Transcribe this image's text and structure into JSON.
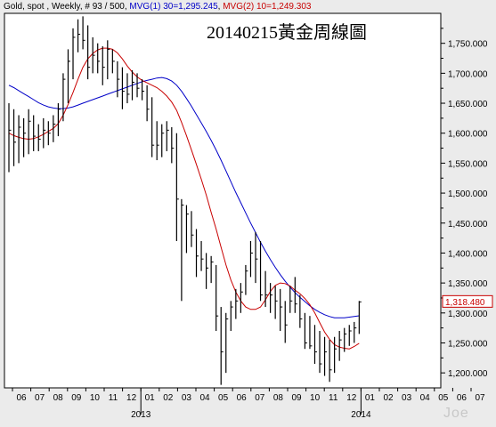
{
  "header": {
    "symbol": "Gold, spot",
    "period": "Weekly",
    "bars": "# 93 / 500",
    "mvg1": "MVG(1) 30=1,295.245",
    "mvg2": "MVG(2) 10=1,249.303"
  },
  "watermark": "Joe",
  "chart_data": {
    "type": "candlestick",
    "title": "20140215黃金周線圖",
    "ylim": [
      1175,
      1800
    ],
    "y_ticks": [
      1200,
      1250,
      1300,
      1350,
      1400,
      1450,
      1500,
      1550,
      1600,
      1650,
      1700,
      1750
    ],
    "y_tick_labels": [
      "1,200.000",
      "1,250.000",
      "1,300.000",
      "1,350.000",
      "1,400.000",
      "1,450.000",
      "1,500.000",
      "1,550.000",
      "1,600.000",
      "1,650.000",
      "1,700.000",
      "1,750.000"
    ],
    "last_price": 1318.48,
    "last_price_label": "1,318.480",
    "x_month_labels": [
      "06",
      "07",
      "08",
      "09",
      "10",
      "11",
      "12",
      "01",
      "02",
      "03",
      "04",
      "05",
      "06",
      "07",
      "08",
      "09",
      "10",
      "11",
      "12",
      "01",
      "02",
      "03",
      "04",
      "05",
      "06",
      "07"
    ],
    "x_year_labels": [
      {
        "label": "2013",
        "month_index": 7
      },
      {
        "label": "2014",
        "month_index": 19
      }
    ],
    "weekly_bars": [
      {
        "h": 1650,
        "l": 1535,
        "c": 1605
      },
      {
        "h": 1640,
        "l": 1545,
        "c": 1585
      },
      {
        "h": 1630,
        "l": 1550,
        "c": 1610
      },
      {
        "h": 1625,
        "l": 1560,
        "c": 1600
      },
      {
        "h": 1640,
        "l": 1565,
        "c": 1620
      },
      {
        "h": 1630,
        "l": 1570,
        "c": 1595
      },
      {
        "h": 1615,
        "l": 1570,
        "c": 1590
      },
      {
        "h": 1625,
        "l": 1575,
        "c": 1605
      },
      {
        "h": 1620,
        "l": 1580,
        "c": 1600
      },
      {
        "h": 1630,
        "l": 1585,
        "c": 1615
      },
      {
        "h": 1650,
        "l": 1595,
        "c": 1640
      },
      {
        "h": 1700,
        "l": 1620,
        "c": 1690
      },
      {
        "h": 1740,
        "l": 1650,
        "c": 1720
      },
      {
        "h": 1775,
        "l": 1690,
        "c": 1760
      },
      {
        "h": 1790,
        "l": 1735,
        "c": 1765
      },
      {
        "h": 1795,
        "l": 1740,
        "c": 1755
      },
      {
        "h": 1780,
        "l": 1690,
        "c": 1710
      },
      {
        "h": 1760,
        "l": 1700,
        "c": 1730
      },
      {
        "h": 1750,
        "l": 1700,
        "c": 1720
      },
      {
        "h": 1745,
        "l": 1680,
        "c": 1710
      },
      {
        "h": 1755,
        "l": 1690,
        "c": 1740
      },
      {
        "h": 1740,
        "l": 1700,
        "c": 1720
      },
      {
        "h": 1720,
        "l": 1660,
        "c": 1690
      },
      {
        "h": 1710,
        "l": 1640,
        "c": 1670
      },
      {
        "h": 1700,
        "l": 1650,
        "c": 1665
      },
      {
        "h": 1705,
        "l": 1655,
        "c": 1685
      },
      {
        "h": 1700,
        "l": 1660,
        "c": 1675
      },
      {
        "h": 1690,
        "l": 1655,
        "c": 1670
      },
      {
        "h": 1680,
        "l": 1620,
        "c": 1640
      },
      {
        "h": 1660,
        "l": 1560,
        "c": 1580
      },
      {
        "h": 1620,
        "l": 1555,
        "c": 1580
      },
      {
        "h": 1615,
        "l": 1560,
        "c": 1600
      },
      {
        "h": 1620,
        "l": 1570,
        "c": 1605
      },
      {
        "h": 1610,
        "l": 1550,
        "c": 1575
      },
      {
        "h": 1600,
        "l": 1420,
        "c": 1490
      },
      {
        "h": 1490,
        "l": 1320,
        "c": 1480
      },
      {
        "h": 1480,
        "l": 1400,
        "c": 1465
      },
      {
        "h": 1470,
        "l": 1410,
        "c": 1430
      },
      {
        "h": 1440,
        "l": 1360,
        "c": 1395
      },
      {
        "h": 1420,
        "l": 1370,
        "c": 1390
      },
      {
        "h": 1400,
        "l": 1340,
        "c": 1375
      },
      {
        "h": 1395,
        "l": 1350,
        "c": 1385
      },
      {
        "h": 1380,
        "l": 1270,
        "c": 1295
      },
      {
        "h": 1310,
        "l": 1180,
        "c": 1235
      },
      {
        "h": 1300,
        "l": 1200,
        "c": 1290
      },
      {
        "h": 1320,
        "l": 1270,
        "c": 1310
      },
      {
        "h": 1340,
        "l": 1290,
        "c": 1320
      },
      {
        "h": 1350,
        "l": 1300,
        "c": 1335
      },
      {
        "h": 1380,
        "l": 1330,
        "c": 1370
      },
      {
        "h": 1420,
        "l": 1360,
        "c": 1400
      },
      {
        "h": 1435,
        "l": 1350,
        "c": 1390
      },
      {
        "h": 1420,
        "l": 1320,
        "c": 1330
      },
      {
        "h": 1370,
        "l": 1310,
        "c": 1330
      },
      {
        "h": 1350,
        "l": 1300,
        "c": 1330
      },
      {
        "h": 1345,
        "l": 1290,
        "c": 1320
      },
      {
        "h": 1340,
        "l": 1270,
        "c": 1310
      },
      {
        "h": 1320,
        "l": 1250,
        "c": 1280
      },
      {
        "h": 1345,
        "l": 1300,
        "c": 1320
      },
      {
        "h": 1360,
        "l": 1300,
        "c": 1315
      },
      {
        "h": 1330,
        "l": 1275,
        "c": 1290
      },
      {
        "h": 1300,
        "l": 1240,
        "c": 1250
      },
      {
        "h": 1295,
        "l": 1240,
        "c": 1245
      },
      {
        "h": 1280,
        "l": 1215,
        "c": 1235
      },
      {
        "h": 1270,
        "l": 1200,
        "c": 1215
      },
      {
        "h": 1260,
        "l": 1195,
        "c": 1235
      },
      {
        "h": 1255,
        "l": 1185,
        "c": 1205
      },
      {
        "h": 1260,
        "l": 1200,
        "c": 1240
      },
      {
        "h": 1270,
        "l": 1220,
        "c": 1255
      },
      {
        "h": 1275,
        "l": 1235,
        "c": 1265
      },
      {
        "h": 1280,
        "l": 1245,
        "c": 1270
      },
      {
        "h": 1285,
        "l": 1250,
        "c": 1275
      },
      {
        "h": 1320,
        "l": 1265,
        "c": 1318.48
      }
    ],
    "series": [
      {
        "name": "MVG(1) 30",
        "color": "#0000c8",
        "values": [
          1680,
          1676,
          1671,
          1666,
          1661,
          1656,
          1651,
          1647,
          1644,
          1642,
          1641,
          1641,
          1642,
          1644,
          1647,
          1650,
          1653,
          1656,
          1659,
          1662,
          1665,
          1668,
          1671,
          1674,
          1677,
          1680,
          1683,
          1686,
          1688,
          1690,
          1692,
          1693,
          1691,
          1687,
          1680,
          1670,
          1658,
          1645,
          1631,
          1617,
          1603,
          1588,
          1572,
          1555,
          1537,
          1519,
          1501,
          1484,
          1467,
          1450,
          1434,
          1418,
          1403,
          1389,
          1376,
          1364,
          1353,
          1343,
          1334,
          1326,
          1319,
          1312,
          1306,
          1301,
          1297,
          1294,
          1292,
          1292,
          1292,
          1293,
          1294,
          1295.245
        ]
      },
      {
        "name": "MVG(2) 10",
        "color": "#c80000",
        "values": [
          1600,
          1596,
          1593,
          1591,
          1590,
          1591,
          1594,
          1598,
          1603,
          1608,
          1616,
          1630,
          1648,
          1668,
          1690,
          1710,
          1724,
          1733,
          1739,
          1742,
          1742,
          1740,
          1734,
          1724,
          1712,
          1702,
          1694,
          1688,
          1684,
          1680,
          1676,
          1670,
          1662,
          1652,
          1638,
          1618,
          1596,
          1572,
          1548,
          1523,
          1497,
          1468,
          1440,
          1410,
          1380,
          1355,
          1335,
          1320,
          1310,
          1306,
          1306,
          1310,
          1322,
          1336,
          1346,
          1350,
          1349,
          1345,
          1338,
          1332,
          1324,
          1314,
          1300,
          1284,
          1268,
          1256,
          1247,
          1243,
          1241,
          1240,
          1244,
          1249.303
        ]
      }
    ]
  }
}
